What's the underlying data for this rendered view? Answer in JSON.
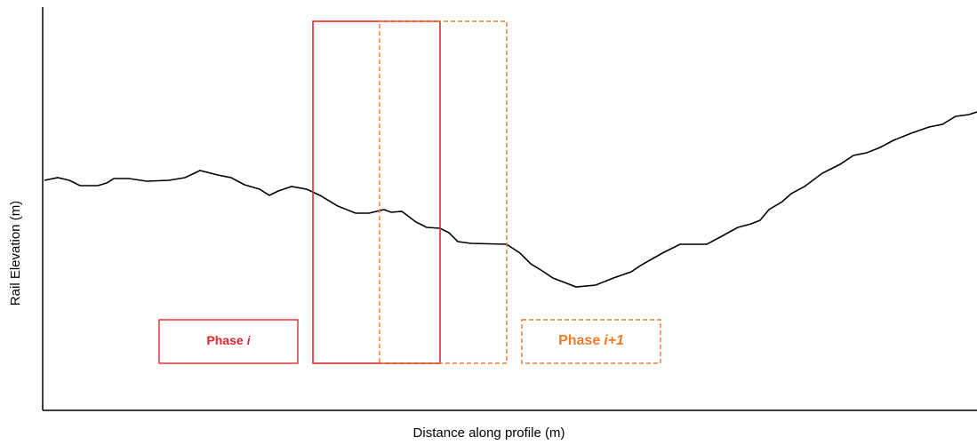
{
  "axes": {
    "x_label": "Distance along profile (m)",
    "y_label": "Rail Elevation (m)"
  },
  "phases": [
    {
      "word": "Phase",
      "index": "i"
    },
    {
      "word": "Phase",
      "index": "i+1"
    }
  ]
}
